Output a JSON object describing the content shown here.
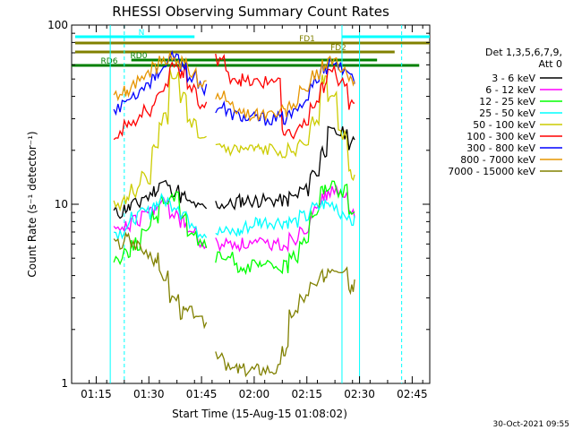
{
  "chart_data": {
    "type": "line",
    "title": "RHESSI Observing Summary Count Rates",
    "xlabel": "Start Time (15-Aug-15 01:08:02)",
    "ylabel": "Count Rate (s⁻¹ detector⁻¹)",
    "yscale": "log",
    "ylim": [
      1,
      100
    ],
    "xlim": [
      "01:08",
      "02:50"
    ],
    "x_ticks": [
      "01:15",
      "01:30",
      "01:45",
      "02:00",
      "02:15",
      "02:30",
      "02:45"
    ],
    "y_ticks": [
      "1",
      "10",
      "100"
    ],
    "timestamp": "30-Oct-2021 09:55",
    "legend_header": [
      "Det 1,3,5,6,7,9,",
      "Att 0"
    ],
    "legend_position": "right",
    "x_time_points": [
      "01:20",
      "01:23",
      "01:25",
      "01:28",
      "01:31",
      "01:33",
      "01:36",
      "01:39",
      "01:41",
      "01:44",
      "01:47",
      "01:49",
      "01:52",
      "01:55",
      "01:57",
      "02:00",
      "02:02",
      "02:05",
      "02:08",
      "02:10",
      "02:13",
      "02:16",
      "02:19",
      "02:21",
      "02:24",
      "02:27",
      "02:29",
      "02:32"
    ],
    "series": [
      {
        "name": "3 - 6 keV",
        "color": "#000000",
        "values": [
          9,
          9.5,
          10,
          11,
          12,
          13,
          12,
          11,
          10,
          9.5,
          null,
          10,
          10,
          10.5,
          10.5,
          10.5,
          10.5,
          10.5,
          10.5,
          11,
          12,
          15,
          20,
          25,
          25,
          22,
          null,
          null
        ]
      },
      {
        "name": "6 - 12 keV",
        "color": "#ff00ff",
        "values": [
          7,
          7.5,
          8,
          9,
          9.5,
          10,
          9,
          8,
          7,
          6,
          null,
          6,
          6,
          6,
          6,
          6,
          6,
          6,
          6,
          6.5,
          7.5,
          9,
          11,
          12,
          11,
          9,
          null,
          null
        ]
      },
      {
        "name": "12 - 25 keV",
        "color": "#00ff00",
        "values": [
          5,
          5.5,
          6,
          7,
          8.5,
          10.5,
          11,
          9,
          7,
          6,
          null,
          5,
          5,
          4.5,
          4.5,
          4.5,
          4.5,
          4.5,
          4.5,
          5,
          6.5,
          9,
          12,
          13,
          12,
          9,
          null,
          null
        ]
      },
      {
        "name": "25 - 50 keV",
        "color": "#00ffff",
        "values": [
          7,
          7.5,
          8.5,
          9,
          10,
          10.5,
          10,
          9,
          8,
          7,
          null,
          7,
          7,
          7,
          7.5,
          8,
          8,
          8,
          8,
          8,
          8.5,
          9.5,
          10,
          10,
          9,
          8,
          null,
          null
        ]
      },
      {
        "name": "50 - 100 keV",
        "color": "#cccc00",
        "values": [
          10,
          11,
          12,
          14,
          20,
          30,
          52,
          40,
          28,
          22,
          null,
          21,
          20,
          20,
          20,
          20,
          20,
          20,
          20,
          20,
          22,
          30,
          50,
          40,
          25,
          15,
          null,
          null
        ]
      },
      {
        "name": "100 - 300 keV",
        "color": "#ff0000",
        "values": [
          25,
          27,
          30,
          33,
          38,
          45,
          60,
          55,
          45,
          35,
          null,
          65,
          52,
          50,
          48,
          48,
          48,
          50,
          24,
          25,
          28,
          35,
          45,
          55,
          50,
          35,
          null,
          null
        ]
      },
      {
        "name": "300 - 800 keV",
        "color": "#0000ff",
        "values": [
          35,
          38,
          42,
          47,
          53,
          58,
          65,
          60,
          52,
          45,
          null,
          35,
          32,
          31,
          30,
          30,
          30,
          30,
          30,
          32,
          38,
          48,
          58,
          62,
          58,
          50,
          null,
          null
        ]
      },
      {
        "name": "800 - 7000 keV",
        "color": "#e69500",
        "values": [
          40,
          43,
          48,
          53,
          58,
          62,
          66,
          62,
          56,
          48,
          null,
          40,
          35,
          33,
          32,
          32,
          32,
          32,
          33,
          36,
          42,
          52,
          60,
          62,
          55,
          48,
          null,
          null
        ]
      },
      {
        "name": "7000 - 15000 keV",
        "color": "#808000",
        "values": [
          6,
          6.5,
          6,
          5.5,
          5,
          4,
          3,
          2.5,
          2.5,
          2.2,
          null,
          1.5,
          1.2,
          1.2,
          1.2,
          1.2,
          1.2,
          1.2,
          1.5,
          2.5,
          3,
          3.5,
          4,
          4.5,
          4.5,
          3.5,
          null,
          null
        ]
      }
    ],
    "annotations": [
      "N",
      "FD1",
      "FD2",
      "RD0",
      "RD6"
    ],
    "flag_bars": [
      {
        "label": "N",
        "color": "#00ffff",
        "segments": [
          [
            "01:09",
            "01:43"
          ],
          [
            "02:25",
            "02:50"
          ]
        ]
      },
      {
        "label": "FD1",
        "color": "#808000",
        "segments": [
          [
            "01:09",
            "02:50"
          ]
        ]
      },
      {
        "label": "FD2",
        "color": "#808000",
        "segments": [
          [
            "01:09",
            "02:40"
          ]
        ]
      },
      {
        "label": "RD0",
        "color": "#008000",
        "segments": [
          [
            "01:25",
            "02:35"
          ]
        ]
      },
      {
        "label": "RD6",
        "color": "#008000",
        "segments": [
          [
            "01:08",
            "02:47"
          ]
        ]
      }
    ]
  }
}
